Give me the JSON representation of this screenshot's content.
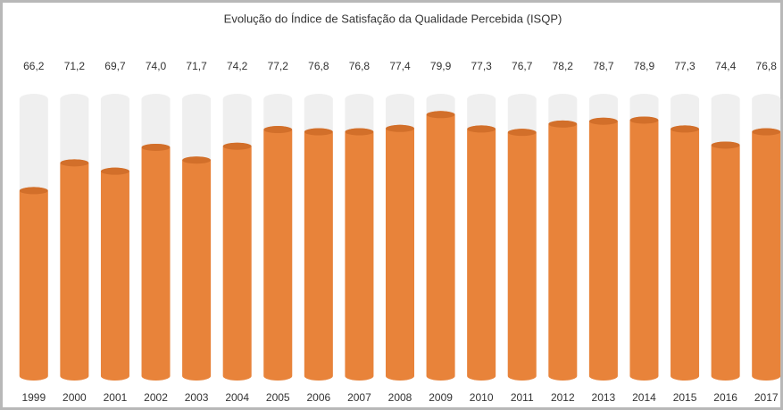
{
  "chart_data": {
    "type": "bar",
    "title": "Evolução do Índice de Satisfação da Qualidade Percebida (ISQP)",
    "categories": [
      "1999",
      "2000",
      "2001",
      "2002",
      "2003",
      "2004",
      "2005",
      "2006",
      "2007",
      "2008",
      "2009",
      "2010",
      "2011",
      "2012",
      "2013",
      "2014",
      "2015",
      "2016",
      "2017"
    ],
    "values": [
      66.2,
      71.2,
      69.7,
      74.0,
      71.7,
      74.2,
      77.2,
      76.8,
      76.8,
      77.4,
      79.9,
      77.3,
      76.7,
      78.2,
      78.7,
      78.9,
      77.3,
      74.4,
      76.8
    ],
    "value_labels": [
      "66,2",
      "71,2",
      "69,7",
      "74,0",
      "71,7",
      "74,2",
      "77,2",
      "76,8",
      "76,8",
      "77,4",
      "79,9",
      "77,3",
      "76,7",
      "78,2",
      "78,7",
      "78,9",
      "77,3",
      "74,4",
      "76,8"
    ],
    "color": "#e8833a",
    "ylim": [
      32,
      83
    ]
  }
}
